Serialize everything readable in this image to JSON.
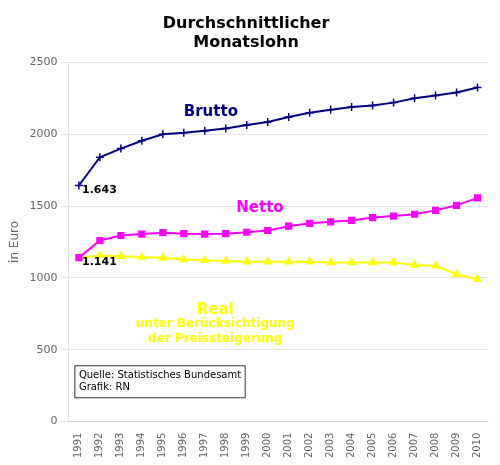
{
  "chart_data": {
    "type": "line",
    "title": "Durchschnittlicher\nMonatslohn",
    "ylabel": "in Euro",
    "x": [
      1991,
      1992,
      1993,
      1994,
      1995,
      1996,
      1997,
      1998,
      1999,
      2000,
      2001,
      2002,
      2003,
      2004,
      2005,
      2006,
      2007,
      2008,
      2009,
      2010
    ],
    "xlim": [
      1990.5,
      2010.5
    ],
    "xticks": [
      1991,
      1992,
      1993,
      1994,
      1995,
      1996,
      1997,
      1998,
      1999,
      2000,
      2001,
      2002,
      2003,
      2004,
      2005,
      2006,
      2007,
      2008,
      2009,
      2010
    ],
    "ylim": [
      0,
      2500
    ],
    "yticks": [
      0,
      500,
      1000,
      1500,
      2000,
      2500
    ],
    "grid": "y",
    "series": [
      {
        "name": "Brutto",
        "color": "#000080",
        "marker": "plus",
        "values": [
          1643,
          1840,
          1900,
          1955,
          2000,
          2010,
          2025,
          2040,
          2065,
          2085,
          2120,
          2150,
          2170,
          2190,
          2200,
          2220,
          2250,
          2270,
          2290,
          2325
        ]
      },
      {
        "name": "Netto",
        "color": "#ff00ff",
        "marker": "square",
        "values": [
          1141,
          1260,
          1295,
          1305,
          1315,
          1308,
          1305,
          1308,
          1318,
          1330,
          1360,
          1380,
          1390,
          1400,
          1420,
          1430,
          1443,
          1470,
          1505,
          1557
        ]
      },
      {
        "name": "Real",
        "color": "#ffff00",
        "marker": "triangle",
        "values": [
          1141,
          1155,
          1150,
          1145,
          1140,
          1128,
          1122,
          1118,
          1112,
          1112,
          1112,
          1112,
          1108,
          1108,
          1108,
          1108,
          1090,
          1085,
          1025,
          990
        ]
      }
    ],
    "annotations": [
      "1.643",
      "1.141",
      "unter Berücksichtigung\nder Preissteigerung",
      "Quelle: Statistisches Bundesamt\nGrafik: RN"
    ]
  }
}
